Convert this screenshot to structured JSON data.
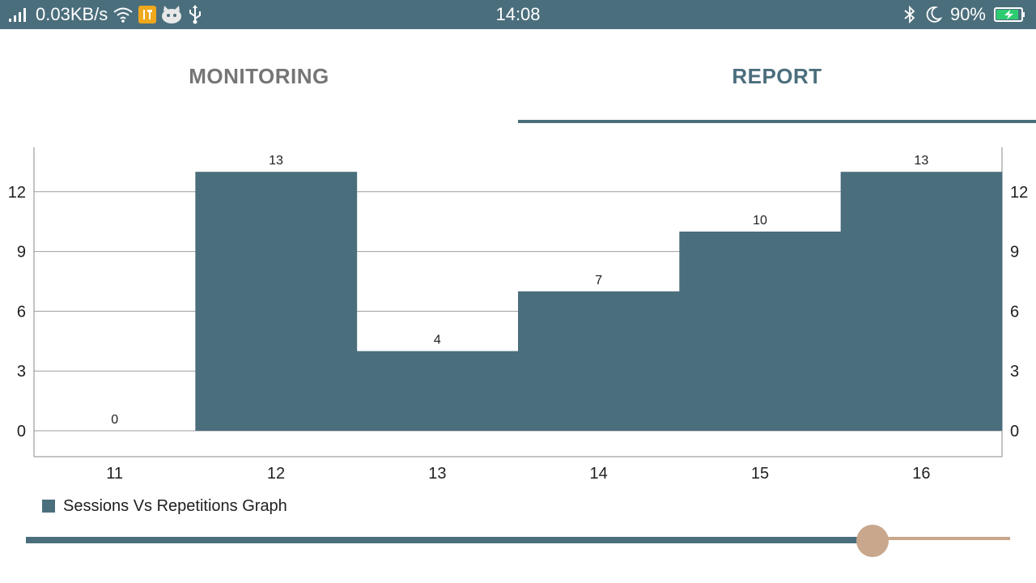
{
  "status_bar": {
    "net_speed": "0.03KB/s",
    "time": "14:08",
    "battery_percent": "90%",
    "icons": [
      "signal-icon",
      "wifi-icon",
      "tools-app-icon",
      "android-app-icon",
      "usb-icon",
      "bluetooth-icon",
      "moon-icon",
      "battery-charging-icon"
    ],
    "battery_level": 0.9
  },
  "tabs": {
    "items": [
      "MONITORING",
      "REPORT"
    ],
    "selected": "REPORT"
  },
  "colors": {
    "accent": "#4b6e7c",
    "slider_thumb": "#c8a78c",
    "battery_fill": "#2ecc71"
  },
  "chart_data": {
    "type": "bar",
    "categories": [
      "11",
      "12",
      "13",
      "14",
      "15",
      "16"
    ],
    "series": [
      {
        "name": "Sessions Vs Repetitions Graph",
        "values": [
          0,
          13,
          4,
          7,
          10,
          13
        ]
      }
    ],
    "yticks": [
      "0",
      "3",
      "6",
      "9",
      "12"
    ],
    "ylim": [
      0,
      13
    ],
    "grid": true,
    "legend": "bottom-left",
    "data_labels": true,
    "dual_y_axis": true
  },
  "slider": {
    "position": 0.86
  }
}
